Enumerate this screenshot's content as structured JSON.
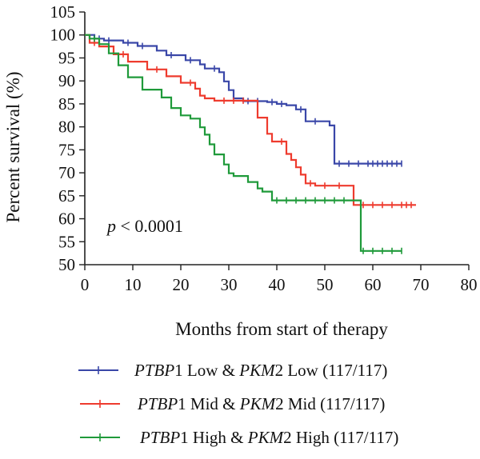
{
  "chart_data": {
    "type": "line",
    "step": true,
    "xlabel": "Months from start of therapy",
    "ylabel": "Percent survival (%)",
    "xlim": [
      0,
      80
    ],
    "ylim": [
      50,
      105
    ],
    "xticks": [
      0,
      10,
      20,
      30,
      40,
      50,
      60,
      70,
      80
    ],
    "yticks": [
      50,
      55,
      60,
      65,
      70,
      75,
      80,
      85,
      90,
      95,
      100,
      105
    ],
    "grid": false,
    "legend_position": "bottom",
    "annotation": {
      "italic": "p",
      "text": " < 0.0001"
    },
    "series": [
      {
        "name": "PTBP1 Low & PKM2 Low (117/117)",
        "legend_parts": [
          {
            "text": "PTBP",
            "italic": true
          },
          {
            "text": "1 Low & ",
            "italic": false
          },
          {
            "text": "PKM",
            "italic": true
          },
          {
            "text": "2 Low (117/117)",
            "italic": false
          }
        ],
        "color": "#3a47a8",
        "x": [
          0,
          2,
          4,
          8,
          11,
          15,
          17,
          21,
          24,
          25,
          28,
          29,
          30,
          31,
          33,
          38,
          40,
          42,
          44,
          46,
          51,
          52,
          66
        ],
        "y": [
          100,
          99.2,
          98.8,
          98.3,
          97.6,
          96.6,
          95.6,
          94.5,
          93.6,
          92.7,
          91.9,
          89.9,
          88.0,
          86.2,
          85.6,
          85.4,
          85.0,
          84.7,
          83.8,
          81.2,
          80.3,
          72.0,
          72.0
        ],
        "censor_x": [
          3,
          5,
          9,
          12,
          18,
          22,
          27,
          34,
          36,
          39,
          41,
          45,
          48,
          53,
          55,
          57,
          59,
          60,
          61,
          62,
          63,
          64,
          65,
          66
        ]
      },
      {
        "name": "PTBP1 Mid & PKM2 Mid (117/117)",
        "legend_parts": [
          {
            "text": "PTBP",
            "italic": true
          },
          {
            "text": "1 Mid & ",
            "italic": false
          },
          {
            "text": "PKM",
            "italic": true
          },
          {
            "text": "2 Mid (117/117)",
            "italic": false
          }
        ],
        "color": "#ee3b2e",
        "x": [
          0,
          1,
          3,
          6,
          9,
          13,
          17,
          20,
          23,
          24,
          25,
          27,
          36,
          38,
          39,
          42,
          43,
          44,
          45,
          46,
          48,
          56,
          69
        ],
        "y": [
          100,
          98.3,
          97.5,
          95.8,
          94.2,
          92.5,
          91.0,
          89.6,
          88.3,
          86.8,
          86.2,
          85.7,
          82.0,
          78.5,
          76.8,
          74.1,
          72.8,
          71.2,
          69.6,
          67.7,
          67.2,
          63.0,
          63.0
        ],
        "censor_x": [
          2,
          8,
          15,
          22,
          29,
          31,
          33,
          41,
          47,
          50,
          53,
          58,
          60,
          62,
          64,
          66,
          67,
          68
        ]
      },
      {
        "name": "PTBP1 High & PKM2 High (117/117)",
        "legend_parts": [
          {
            "text": "PTBP",
            "italic": true
          },
          {
            "text": "1 High & ",
            "italic": false
          },
          {
            "text": "PKM",
            "italic": true
          },
          {
            "text": "2 High (117/117)",
            "italic": false
          }
        ],
        "color": "#1f9a3a",
        "x": [
          0,
          1,
          3,
          5,
          7,
          9,
          12,
          16,
          18,
          20,
          22,
          24,
          25,
          26,
          27,
          29,
          30,
          31,
          34,
          36,
          37,
          39,
          57,
          57.5,
          66
        ],
        "y": [
          100,
          99.2,
          98.0,
          96.0,
          93.4,
          90.8,
          88.1,
          86.4,
          84.1,
          82.5,
          81.8,
          79.9,
          78.3,
          76.2,
          74.0,
          71.8,
          69.9,
          69.3,
          68.0,
          66.6,
          65.9,
          64.0,
          64.0,
          53.0,
          53.0
        ],
        "censor_x": [
          2,
          40,
          42,
          44,
          46,
          48,
          50,
          52,
          54,
          58,
          60,
          62,
          64,
          66
        ]
      }
    ]
  }
}
